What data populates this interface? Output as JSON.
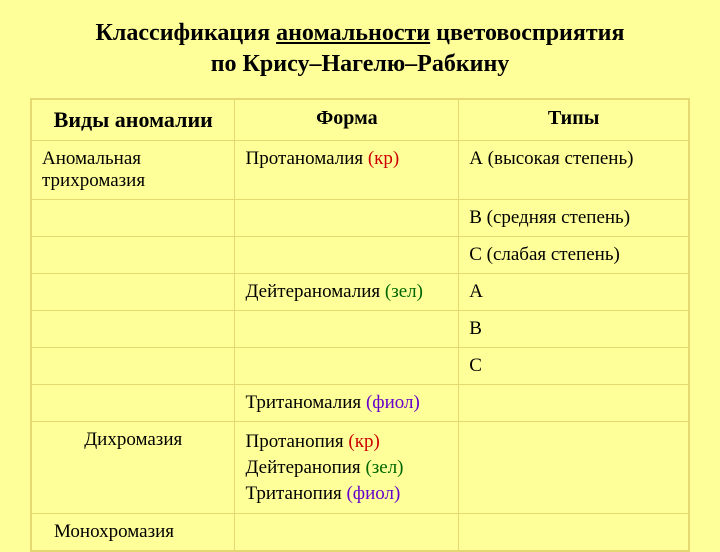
{
  "title": {
    "part1": "Классификация ",
    "underlined": "аномальности",
    "part2": " цветовосприятия",
    "line2": "по Крису–Нагелю–Рабкину"
  },
  "headers": {
    "col1": "Виды аномалии",
    "col2": "Форма",
    "col3": "Типы"
  },
  "rows": [
    {
      "c1": "Аномальная трихромазия",
      "c2_text": "Протаномалия",
      "c2_suffix": " (кр)",
      "c2_color": "red",
      "c3": "А  (высокая степень)"
    },
    {
      "c1": "",
      "c2_text": "",
      "c2_suffix": "",
      "c2_color": "",
      "c3": "В  (средняя степень)"
    },
    {
      "c1": "",
      "c2_text": "",
      "c2_suffix": "",
      "c2_color": "",
      "c3": "С  (слабая степень)"
    },
    {
      "c1": "",
      "c2_text": "Дейтераномалия",
      "c2_suffix": " (зел)",
      "c2_color": "green",
      "c3": "А"
    },
    {
      "c1": "",
      "c2_text": "",
      "c2_suffix": "",
      "c2_color": "",
      "c3": "В"
    },
    {
      "c1": "",
      "c2_text": "",
      "c2_suffix": "",
      "c2_color": "",
      "c3": "С"
    },
    {
      "c1": "",
      "c2_text": "Тританомалия",
      "c2_suffix": " (фиол)",
      "c2_color": "violet",
      "c3": ""
    }
  ],
  "dichromasia": {
    "label": "Дихромазия",
    "line1_text": "Протанопия",
    "line1_suffix": " (кр)",
    "line2_text": "Дейтеранопия",
    "line2_suffix": " (зел)",
    "line3_text": "Тританопия",
    "line3_suffix": " (фиол)"
  },
  "monochromasia": {
    "label": "Монохромазия"
  }
}
